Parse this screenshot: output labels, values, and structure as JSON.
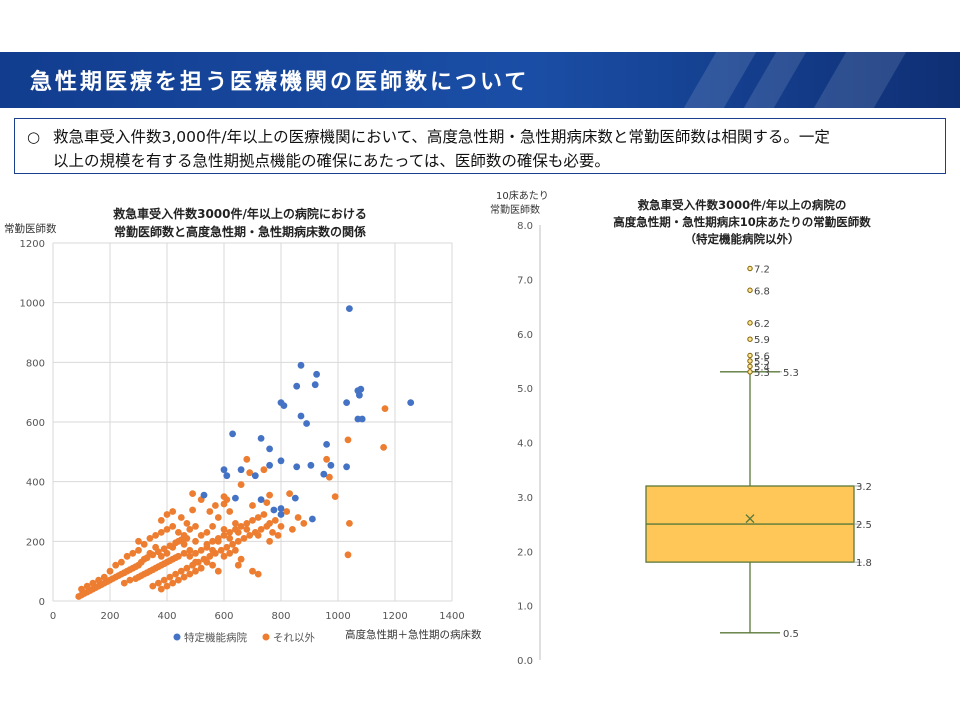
{
  "slide": {
    "title": "急性期医療を担う医療機関の医師数について",
    "bullet": "○",
    "summary_line1": "救急車受入件数3,000件/年以上の医療機関において、高度急性期・急性期病床数と常勤医師数は相関する。一定",
    "summary_line2": "以上の規模を有する急性期拠点機能の確保にあたっては、医師数の確保も必要。",
    "colors": {
      "banner": "#1a4ea6",
      "hospital_special": "#4472c4",
      "hospital_other": "#ed7d31",
      "box_fill": "#ffc658",
      "box_line": "#5a7a3a"
    }
  },
  "chart_data": [
    {
      "type": "scatter",
      "title_line1": "救急車受入件数3000件/年以上の病院における",
      "title_line2": "常勤医師数と高度急性期・急性期病床数の関係",
      "xlabel": "高度急性期＋急性期の病床数",
      "ylabel": "常勤医師数",
      "xlim": [
        0,
        1400
      ],
      "ylim": [
        0,
        1200
      ],
      "xticks": [
        "0",
        "200",
        "400",
        "600",
        "800",
        "1000",
        "1200",
        "1400"
      ],
      "yticks": [
        "0",
        "200",
        "400",
        "600",
        "800",
        "1000",
        "1200"
      ],
      "grid": true,
      "legend_position": "bottom",
      "series": [
        {
          "name": "特定機能病院",
          "color": "#4472c4",
          "points": [
            [
              1040,
              980
            ],
            [
              870,
              790
            ],
            [
              925,
              760
            ],
            [
              855,
              720
            ],
            [
              1070,
              705
            ],
            [
              1080,
              710
            ],
            [
              920,
              725
            ],
            [
              1075,
              690
            ],
            [
              800,
              665
            ],
            [
              810,
              655
            ],
            [
              1030,
              665
            ],
            [
              1255,
              665
            ],
            [
              630,
              560
            ],
            [
              870,
              620
            ],
            [
              1085,
              610
            ],
            [
              1070,
              610
            ],
            [
              890,
              595
            ],
            [
              730,
              545
            ],
            [
              960,
              525
            ],
            [
              760,
              510
            ],
            [
              800,
              470
            ],
            [
              760,
              455
            ],
            [
              600,
              440
            ],
            [
              660,
              440
            ],
            [
              855,
              450
            ],
            [
              905,
              455
            ],
            [
              975,
              455
            ],
            [
              1030,
              450
            ],
            [
              610,
              420
            ],
            [
              710,
              420
            ],
            [
              950,
              425
            ],
            [
              530,
              355
            ],
            [
              640,
              345
            ],
            [
              850,
              345
            ],
            [
              730,
              340
            ],
            [
              800,
              310
            ],
            [
              800,
              290
            ],
            [
              775,
              305
            ],
            [
              910,
              275
            ]
          ]
        },
        {
          "name": "それ以外",
          "color": "#ed7d31",
          "points": [
            [
              1165,
              645
            ],
            [
              1160,
              515
            ],
            [
              1035,
              540
            ],
            [
              960,
              475
            ],
            [
              970,
              415
            ],
            [
              990,
              350
            ],
            [
              830,
              360
            ],
            [
              1040,
              260
            ],
            [
              1035,
              155
            ],
            [
              680,
              475
            ],
            [
              690,
              430
            ],
            [
              740,
              440
            ],
            [
              660,
              390
            ],
            [
              760,
              355
            ],
            [
              490,
              360
            ],
            [
              520,
              340
            ],
            [
              490,
              305
            ],
            [
              600,
              325
            ],
            [
              620,
              300
            ],
            [
              700,
              320
            ],
            [
              750,
              330
            ],
            [
              820,
              300
            ],
            [
              860,
              280
            ],
            [
              880,
              260
            ],
            [
              840,
              240
            ],
            [
              800,
              250
            ],
            [
              640,
              260
            ],
            [
              680,
              240
            ],
            [
              720,
              220
            ],
            [
              760,
              200
            ],
            [
              580,
              280
            ],
            [
              560,
              250
            ],
            [
              540,
              230
            ],
            [
              600,
              240
            ],
            [
              620,
              210
            ],
            [
              650,
              230
            ],
            [
              580,
              200
            ],
            [
              520,
              220
            ],
            [
              500,
              200
            ],
            [
              540,
              180
            ],
            [
              460,
              190
            ],
            [
              480,
              170
            ],
            [
              440,
              200
            ],
            [
              420,
              180
            ],
            [
              400,
              160
            ],
            [
              380,
              150
            ],
            [
              360,
              180
            ],
            [
              340,
              160
            ],
            [
              320,
              140
            ],
            [
              300,
              120
            ],
            [
              280,
              110
            ],
            [
              260,
              100
            ],
            [
              240,
              90
            ],
            [
              220,
              80
            ],
            [
              200,
              70
            ],
            [
              180,
              60
            ],
            [
              160,
              50
            ],
            [
              140,
              40
            ],
            [
              120,
              30
            ],
            [
              100,
              20
            ],
            [
              90,
              15
            ],
            [
              110,
              25
            ],
            [
              130,
              35
            ],
            [
              150,
              45
            ],
            [
              170,
              55
            ],
            [
              190,
              65
            ],
            [
              210,
              75
            ],
            [
              230,
              85
            ],
            [
              250,
              95
            ],
            [
              270,
              105
            ],
            [
              290,
              115
            ],
            [
              310,
              130
            ],
            [
              330,
              145
            ],
            [
              350,
              155
            ],
            [
              370,
              165
            ],
            [
              390,
              175
            ],
            [
              410,
              185
            ],
            [
              430,
              195
            ],
            [
              450,
              205
            ],
            [
              470,
              210
            ],
            [
              300,
              80
            ],
            [
              320,
              90
            ],
            [
              340,
              100
            ],
            [
              360,
              110
            ],
            [
              380,
              120
            ],
            [
              400,
              130
            ],
            [
              420,
              140
            ],
            [
              440,
              150
            ],
            [
              460,
              160
            ],
            [
              480,
              150
            ],
            [
              500,
              160
            ],
            [
              520,
              170
            ],
            [
              540,
              190
            ],
            [
              560,
              200
            ],
            [
              580,
              210
            ],
            [
              600,
              220
            ],
            [
              620,
              230
            ],
            [
              640,
              240
            ],
            [
              660,
              250
            ],
            [
              680,
              260
            ],
            [
              700,
              270
            ],
            [
              720,
              280
            ],
            [
              740,
              290
            ],
            [
              760,
              260
            ],
            [
              780,
              270
            ],
            [
              250,
              60
            ],
            [
              270,
              70
            ],
            [
              290,
              75
            ],
            [
              310,
              85
            ],
            [
              330,
              95
            ],
            [
              350,
              105
            ],
            [
              370,
              115
            ],
            [
              390,
              125
            ],
            [
              410,
              135
            ],
            [
              430,
              145
            ],
            [
              300,
              200
            ],
            [
              320,
              190
            ],
            [
              340,
              210
            ],
            [
              360,
              220
            ],
            [
              380,
              230
            ],
            [
              400,
              240
            ],
            [
              420,
              250
            ],
            [
              440,
              230
            ],
            [
              460,
              220
            ],
            [
              480,
              240
            ],
            [
              500,
              250
            ],
            [
              260,
              150
            ],
            [
              280,
              160
            ],
            [
              300,
              170
            ],
            [
              220,
              120
            ],
            [
              240,
              130
            ],
            [
              200,
              100
            ],
            [
              180,
              80
            ],
            [
              160,
              70
            ],
            [
              140,
              60
            ],
            [
              120,
              50
            ],
            [
              100,
              40
            ],
            [
              350,
              50
            ],
            [
              370,
              60
            ],
            [
              390,
              70
            ],
            [
              410,
              80
            ],
            [
              430,
              90
            ],
            [
              450,
              100
            ],
            [
              470,
              110
            ],
            [
              490,
              120
            ],
            [
              510,
              130
            ],
            [
              530,
              140
            ],
            [
              550,
              150
            ],
            [
              570,
              160
            ],
            [
              590,
              170
            ],
            [
              610,
              180
            ],
            [
              630,
              190
            ],
            [
              650,
              200
            ],
            [
              670,
              210
            ],
            [
              690,
              220
            ],
            [
              710,
              230
            ],
            [
              730,
              240
            ],
            [
              750,
              250
            ],
            [
              770,
              230
            ],
            [
              790,
              220
            ],
            [
              700,
              100
            ],
            [
              720,
              90
            ],
            [
              650,
              120
            ],
            [
              660,
              140
            ],
            [
              580,
              100
            ],
            [
              560,
              120
            ],
            [
              540,
              130
            ],
            [
              520,
              110
            ],
            [
              500,
              100
            ],
            [
              480,
              90
            ],
            [
              460,
              80
            ],
            [
              440,
              70
            ],
            [
              420,
              60
            ],
            [
              400,
              50
            ],
            [
              380,
              40
            ],
            [
              600,
              150
            ],
            [
              620,
              160
            ],
            [
              640,
              170
            ],
            [
              560,
              170
            ],
            [
              500,
              130
            ],
            [
              380,
              270
            ],
            [
              400,
              290
            ],
            [
              420,
              300
            ],
            [
              450,
              280
            ],
            [
              470,
              260
            ],
            [
              550,
              300
            ],
            [
              570,
              320
            ],
            [
              610,
              340
            ],
            [
              600,
              350
            ]
          ]
        }
      ]
    },
    {
      "type": "box",
      "title_line1": "救急車受入件数3000件/年以上の病院の",
      "title_line2": "高度急性期・急性期病床10床あたりの常勤医師数",
      "title_line3": "（特定機能病院以外）",
      "ylabel_line1": "10床あたり",
      "ylabel_line2": "常勤医師数",
      "ylim": [
        0,
        8
      ],
      "yticks": [
        "0.0",
        "1.0",
        "2.0",
        "3.0",
        "4.0",
        "5.0",
        "6.0",
        "7.0",
        "8.0"
      ],
      "min": 0.5,
      "q1": 1.8,
      "median": 2.5,
      "q3": 3.2,
      "max": 5.3,
      "mean": 2.6,
      "labels": {
        "min": "0.5",
        "q1": "1.8",
        "median": "2.5",
        "q3": "3.2",
        "max": "5.3"
      },
      "outliers": [
        5.3,
        5.4,
        5.5,
        5.6,
        5.9,
        6.2,
        6.8,
        7.2
      ],
      "outlier_labels": [
        "5.3",
        "5.4",
        "5.5",
        "5.6",
        "5.9",
        "6.2",
        "6.8",
        "7.2"
      ]
    }
  ]
}
